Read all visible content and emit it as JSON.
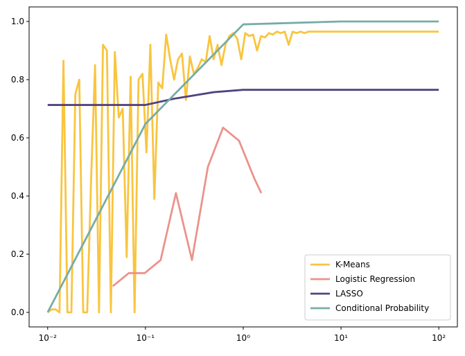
{
  "chart_data": {
    "type": "line",
    "xscale": "log",
    "legend": "lower right",
    "grid": false,
    "xlim": [
      0.00646,
      154.9
    ],
    "ylim": [
      -0.05,
      1.05
    ],
    "xticks": [
      {
        "value": 0.01,
        "label": "10⁻²"
      },
      {
        "value": 0.1,
        "label": "10⁻¹"
      },
      {
        "value": 1,
        "label": "10⁰"
      },
      {
        "value": 10,
        "label": "10¹"
      },
      {
        "value": 100,
        "label": "10²"
      }
    ],
    "yticks": [
      {
        "value": 0,
        "label": "0.0"
      },
      0.2,
      0.4,
      0.6,
      0.8,
      {
        "value": 1,
        "label": "1.0"
      }
    ],
    "series": [
      {
        "name": "K-Means",
        "color": "#f9c53f",
        "x": [
          0.01,
          0.01097,
          0.01205,
          0.01322,
          0.01451,
          0.01592,
          0.01748,
          0.01918,
          0.02105,
          0.0231,
          0.02535,
          0.02783,
          0.03054,
          0.03352,
          0.03678,
          0.04037,
          0.04431,
          0.04863,
          0.05337,
          0.05857,
          0.06428,
          0.07055,
          0.07743,
          0.08498,
          0.09326,
          0.1024,
          0.1123,
          0.1233,
          0.1353,
          0.1485,
          0.163,
          0.1789,
          0.1963,
          0.2154,
          0.2364,
          0.2595,
          0.2848,
          0.3126,
          0.343,
          0.3765,
          0.4132,
          0.4535,
          0.4977,
          0.5462,
          0.5995,
          0.6579,
          0.7221,
          0.7925,
          0.8697,
          0.9545,
          1.048,
          1.15,
          1.262,
          1.385,
          1.52,
          1.668,
          1.831,
          2.009,
          2.205,
          2.42,
          2.656,
          2.915,
          3.199,
          3.511,
          3.854,
          4.229,
          4.642,
          10,
          100
        ],
        "values": [
          0.0,
          0.01,
          0.01,
          0.0,
          0.865,
          0.0,
          0.0,
          0.75,
          0.8,
          0.0,
          0.0,
          0.46,
          0.85,
          0.0,
          0.92,
          0.9,
          0.0,
          0.895,
          0.67,
          0.7,
          0.19,
          0.81,
          0.0,
          0.8,
          0.82,
          0.55,
          0.92,
          0.39,
          0.79,
          0.77,
          0.955,
          0.87,
          0.8,
          0.87,
          0.89,
          0.73,
          0.88,
          0.82,
          0.84,
          0.87,
          0.86,
          0.95,
          0.87,
          0.92,
          0.85,
          0.92,
          0.95,
          0.96,
          0.94,
          0.87,
          0.96,
          0.95,
          0.955,
          0.9,
          0.95,
          0.945,
          0.96,
          0.955,
          0.965,
          0.96,
          0.965,
          0.92,
          0.965,
          0.96,
          0.965,
          0.96,
          0.965,
          0.965,
          0.965
        ]
      },
      {
        "name": "Logistic Regression",
        "color": "#ea938b",
        "x": [
          0.0464,
          0.0676,
          0.0984,
          0.143,
          0.205,
          0.299,
          0.435,
          0.622,
          0.906,
          1.3,
          1.53
        ],
        "values": [
          0.09,
          0.135,
          0.135,
          0.18,
          0.41,
          0.18,
          0.5,
          0.635,
          0.59,
          0.46,
          0.41
        ]
      },
      {
        "name": "LASSO",
        "color": "#514380",
        "x": [
          0.01,
          0.1,
          0.2,
          0.5,
          1,
          100
        ],
        "values": [
          0.713,
          0.713,
          0.735,
          0.757,
          0.765,
          0.765
        ]
      },
      {
        "name": "Conditional Probability",
        "color": "#76aca7",
        "x": [
          0.01,
          0.1,
          1,
          10,
          100
        ],
        "values": [
          0.0,
          0.648,
          0.99,
          1.0,
          1.0
        ]
      }
    ]
  }
}
